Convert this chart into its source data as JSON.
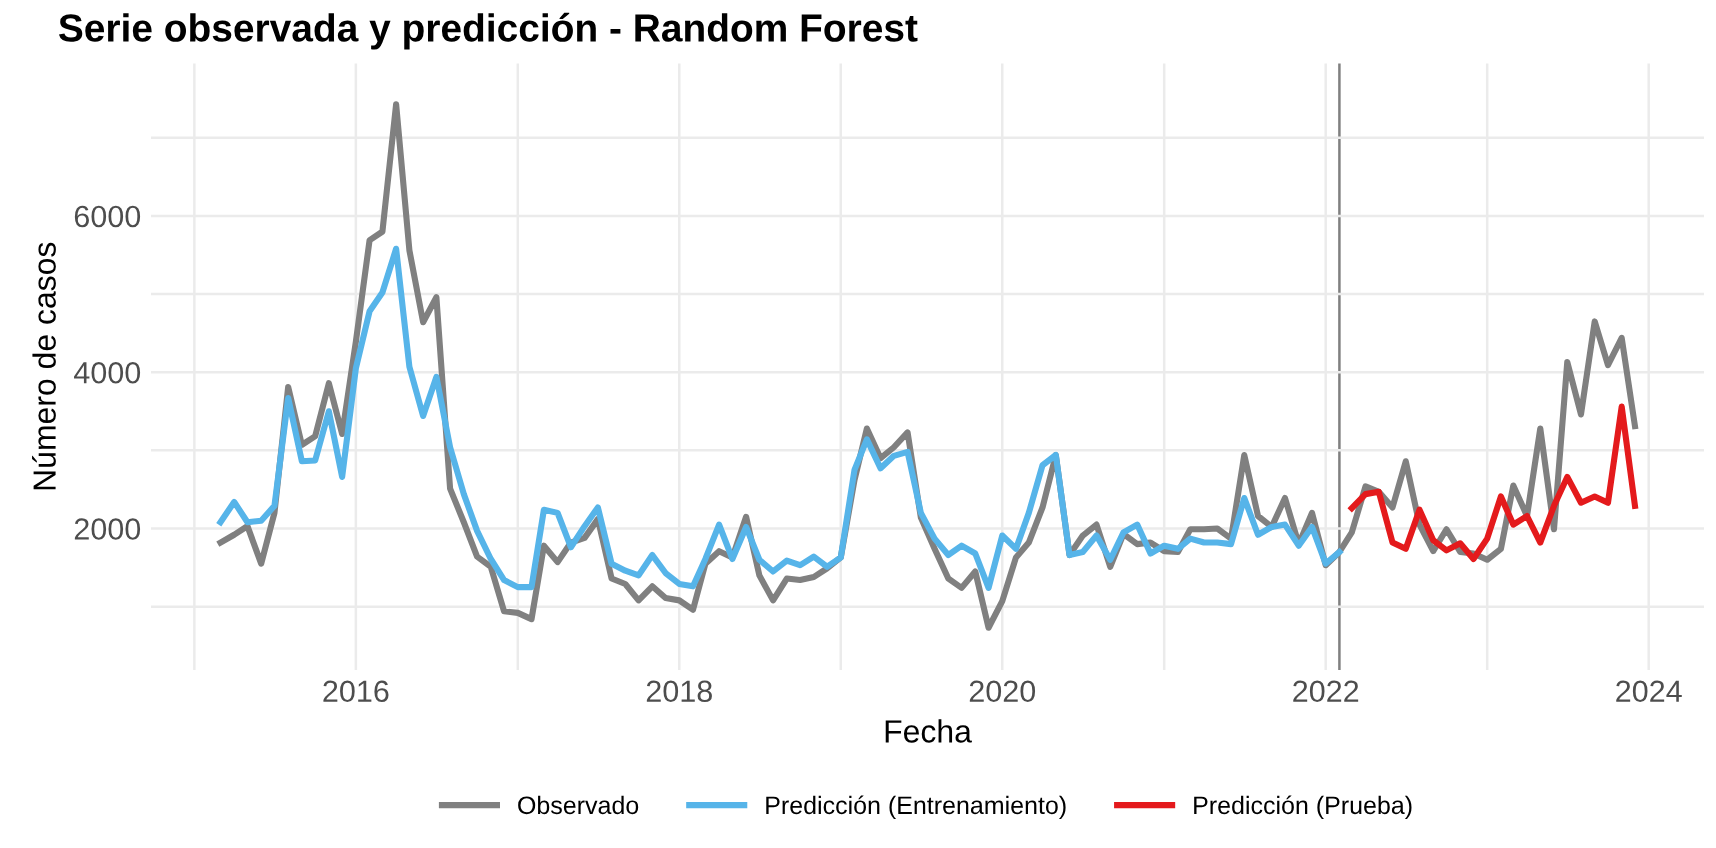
{
  "chart_data": {
    "type": "line",
    "title": "Serie observada y predicción - Random Forest",
    "xlabel": "Fecha",
    "ylabel": "Número de casos",
    "series": [
      {
        "name": "Observado",
        "color": "#808080",
        "x": [
          "2015-03",
          "2015-04",
          "2015-05",
          "2015-06",
          "2015-07",
          "2015-08",
          "2015-09",
          "2015-10",
          "2015-11",
          "2015-12",
          "2016-01",
          "2016-02",
          "2016-03",
          "2016-04",
          "2016-05",
          "2016-06",
          "2016-07",
          "2016-08",
          "2016-09",
          "2016-10",
          "2016-11",
          "2016-12",
          "2017-01",
          "2017-02",
          "2017-03",
          "2017-04",
          "2017-05",
          "2017-06",
          "2017-07",
          "2017-08",
          "2017-09",
          "2017-10",
          "2017-11",
          "2017-12",
          "2018-01",
          "2018-02",
          "2018-03",
          "2018-04",
          "2018-05",
          "2018-06",
          "2018-07",
          "2018-08",
          "2018-09",
          "2018-10",
          "2018-11",
          "2018-12",
          "2019-01",
          "2019-02",
          "2019-03",
          "2019-04",
          "2019-05",
          "2019-06",
          "2019-07",
          "2019-08",
          "2019-09",
          "2019-10",
          "2019-11",
          "2019-12",
          "2020-01",
          "2020-02",
          "2020-03",
          "2020-04",
          "2020-05",
          "2020-06",
          "2020-07",
          "2020-08",
          "2020-09",
          "2020-10",
          "2020-11",
          "2020-12",
          "2021-01",
          "2021-02",
          "2021-03",
          "2021-04",
          "2021-05",
          "2021-06",
          "2021-07",
          "2021-08",
          "2021-09",
          "2021-10",
          "2021-11",
          "2021-12",
          "2022-01",
          "2022-02",
          "2022-03",
          "2022-04",
          "2022-05",
          "2022-06",
          "2022-07",
          "2022-08",
          "2022-09",
          "2022-10",
          "2022-11",
          "2022-12",
          "2023-01",
          "2023-02",
          "2023-03",
          "2023-04",
          "2023-05",
          "2023-06",
          "2023-07",
          "2023-08",
          "2023-09",
          "2023-10",
          "2023-11",
          "2023-12"
        ],
        "values": [
          1820,
          1920,
          2030,
          1550,
          2200,
          3810,
          3070,
          3180,
          3860,
          3210,
          4390,
          5690,
          5800,
          7430,
          5560,
          4640,
          4960,
          2510,
          2080,
          1640,
          1510,
          940,
          920,
          840,
          1780,
          1570,
          1820,
          1880,
          2120,
          1360,
          1290,
          1080,
          1260,
          1110,
          1080,
          960,
          1550,
          1710,
          1630,
          2150,
          1400,
          1080,
          1360,
          1340,
          1380,
          1490,
          1630,
          2620,
          3280,
          2900,
          3040,
          3230,
          2140,
          1740,
          1360,
          1240,
          1450,
          730,
          1070,
          1630,
          1820,
          2270,
          2940,
          1660,
          1910,
          2050,
          1510,
          1930,
          1800,
          1820,
          1710,
          1700,
          1990,
          1990,
          2000,
          1870,
          2940,
          2160,
          2020,
          2390,
          1800,
          2200,
          1530,
          1700,
          1950,
          2540,
          2470,
          2270,
          2860,
          2050,
          1710,
          1990,
          1700,
          1680,
          1600,
          1740,
          2550,
          2160,
          3280,
          1990,
          4130,
          3460,
          4650,
          4090,
          4440,
          3310
        ]
      },
      {
        "name": "Predicción (Entrenamiento)",
        "color": "#56b4e9",
        "x": [
          "2015-03",
          "2015-04",
          "2015-05",
          "2015-06",
          "2015-07",
          "2015-08",
          "2015-09",
          "2015-10",
          "2015-11",
          "2015-12",
          "2016-01",
          "2016-02",
          "2016-03",
          "2016-04",
          "2016-05",
          "2016-06",
          "2016-07",
          "2016-08",
          "2016-09",
          "2016-10",
          "2016-11",
          "2016-12",
          "2017-01",
          "2017-02",
          "2017-03",
          "2017-04",
          "2017-05",
          "2017-06",
          "2017-07",
          "2017-08",
          "2017-09",
          "2017-10",
          "2017-11",
          "2017-12",
          "2018-01",
          "2018-02",
          "2018-03",
          "2018-04",
          "2018-05",
          "2018-06",
          "2018-07",
          "2018-08",
          "2018-09",
          "2018-10",
          "2018-11",
          "2018-12",
          "2019-01",
          "2019-02",
          "2019-03",
          "2019-04",
          "2019-05",
          "2019-06",
          "2019-07",
          "2019-08",
          "2019-09",
          "2019-10",
          "2019-11",
          "2019-12",
          "2020-01",
          "2020-02",
          "2020-03",
          "2020-04",
          "2020-05",
          "2020-06",
          "2020-07",
          "2020-08",
          "2020-09",
          "2020-10",
          "2020-11",
          "2020-12",
          "2021-01",
          "2021-02",
          "2021-03",
          "2021-04",
          "2021-05",
          "2021-06",
          "2021-07",
          "2021-08",
          "2021-09",
          "2021-10",
          "2021-11",
          "2021-12",
          "2022-01",
          "2022-02"
        ],
        "values": [
          2080,
          2340,
          2080,
          2100,
          2290,
          3670,
          2860,
          2870,
          3500,
          2660,
          4050,
          4780,
          5020,
          5580,
          4070,
          3440,
          3940,
          3040,
          2440,
          1970,
          1610,
          1340,
          1250,
          1250,
          2240,
          2200,
          1760,
          2030,
          2270,
          1550,
          1460,
          1400,
          1660,
          1430,
          1290,
          1260,
          1610,
          2050,
          1610,
          2020,
          1600,
          1450,
          1590,
          1530,
          1640,
          1510,
          1630,
          2750,
          3140,
          2770,
          2930,
          2980,
          2200,
          1870,
          1660,
          1780,
          1680,
          1240,
          1910,
          1740,
          2200,
          2810,
          2940,
          1660,
          1700,
          1910,
          1600,
          1950,
          2050,
          1680,
          1780,
          1740,
          1870,
          1820,
          1820,
          1800,
          2390,
          1920,
          2020,
          2050,
          1780,
          2020,
          1550,
          1700
        ]
      },
      {
        "name": "Predicción (Prueba)",
        "color": "#e41a1c",
        "x": [
          "2022-03",
          "2022-04",
          "2022-05",
          "2022-06",
          "2022-07",
          "2022-08",
          "2022-09",
          "2022-10",
          "2022-11",
          "2022-12",
          "2023-01",
          "2023-02",
          "2023-03",
          "2023-04",
          "2023-05",
          "2023-06",
          "2023-07",
          "2023-08",
          "2023-09",
          "2023-10",
          "2023-11",
          "2023-12"
        ],
        "values": [
          2260,
          2440,
          2470,
          1820,
          1740,
          2240,
          1850,
          1720,
          1810,
          1610,
          1870,
          2410,
          2050,
          2160,
          1820,
          2290,
          2660,
          2330,
          2410,
          2330,
          3560,
          2290
        ]
      }
    ],
    "ref_lines": [
      {
        "axis": "x",
        "value": "2022-02-01",
        "color": "#808080"
      }
    ],
    "xlim": [
      "2014-09-25",
      "2024-05-05"
    ],
    "xticks": [
      {
        "value": "2015",
        "label": null
      },
      {
        "value": "2016",
        "label": "2016"
      },
      {
        "value": "2017",
        "label": null
      },
      {
        "value": "2018",
        "label": "2018"
      },
      {
        "value": "2019",
        "label": null
      },
      {
        "value": "2020",
        "label": "2020"
      },
      {
        "value": "2021",
        "label": null
      },
      {
        "value": "2022",
        "label": "2022"
      },
      {
        "value": "2023",
        "label": null
      },
      {
        "value": "2024",
        "label": "2024"
      }
    ],
    "ylim": [
      190,
      7950
    ],
    "yticks": [
      {
        "value": 1000,
        "label": null
      },
      2000,
      {
        "value": 3000,
        "label": null
      },
      4000,
      {
        "value": 5000,
        "label": null
      },
      6000,
      {
        "value": 7000,
        "label": null
      }
    ],
    "grid": true,
    "legend": "bottom",
    "line_style": "solid",
    "marker": "none"
  }
}
